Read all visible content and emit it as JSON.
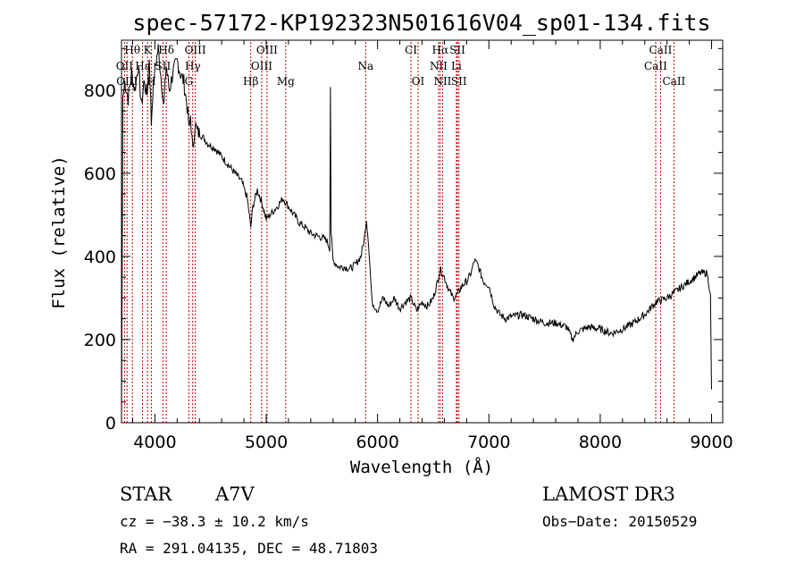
{
  "chart_data": {
    "type": "line",
    "title": "spec-57172-KP192323N501616V04_sp01-134.fits",
    "xlabel": "Wavelength (Å)",
    "ylabel": "Flux (relative)",
    "xlim": [
      3700,
      9100
    ],
    "ylim": [
      0,
      920
    ],
    "xticks": [
      4000,
      5000,
      6000,
      7000,
      8000,
      9000
    ],
    "yticks": [
      0,
      200,
      400,
      600,
      800
    ],
    "line_color": "#000000",
    "marker_color": "#cc0000",
    "spectrum_anchor_points": [
      [
        3700,
        0
      ],
      [
        3705,
        300
      ],
      [
        3712,
        780
      ],
      [
        3730,
        820
      ],
      [
        3760,
        780
      ],
      [
        3790,
        840
      ],
      [
        3820,
        800
      ],
      [
        3850,
        860
      ],
      [
        3880,
        760
      ],
      [
        3900,
        820
      ],
      [
        3930,
        790
      ],
      [
        3950,
        880
      ],
      [
        3968,
        720
      ],
      [
        3980,
        790
      ],
      [
        4000,
        850
      ],
      [
        4030,
        900
      ],
      [
        4060,
        820
      ],
      [
        4080,
        760
      ],
      [
        4101,
        860
      ],
      [
        4130,
        800
      ],
      [
        4160,
        840
      ],
      [
        4200,
        870
      ],
      [
        4230,
        840
      ],
      [
        4260,
        820
      ],
      [
        4290,
        760
      ],
      [
        4310,
        700
      ],
      [
        4320,
        740
      ],
      [
        4340,
        650
      ],
      [
        4360,
        720
      ],
      [
        4380,
        700
      ],
      [
        4420,
        690
      ],
      [
        4480,
        670
      ],
      [
        4540,
        660
      ],
      [
        4600,
        640
      ],
      [
        4660,
        620
      ],
      [
        4720,
        600
      ],
      [
        4780,
        580
      ],
      [
        4830,
        540
      ],
      [
        4861,
        470
      ],
      [
        4880,
        520
      ],
      [
        4920,
        560
      ],
      [
        4960,
        530
      ],
      [
        5000,
        490
      ],
      [
        5050,
        505
      ],
      [
        5100,
        520
      ],
      [
        5150,
        540
      ],
      [
        5200,
        520
      ],
      [
        5250,
        500
      ],
      [
        5300,
        480
      ],
      [
        5350,
        470
      ],
      [
        5400,
        455
      ],
      [
        5450,
        450
      ],
      [
        5500,
        445
      ],
      [
        5540,
        440
      ],
      [
        5570,
        420
      ],
      [
        5577,
        810
      ],
      [
        5582,
        460
      ],
      [
        5600,
        390
      ],
      [
        5650,
        375
      ],
      [
        5700,
        375
      ],
      [
        5750,
        370
      ],
      [
        5800,
        380
      ],
      [
        5850,
        400
      ],
      [
        5880,
        440
      ],
      [
        5900,
        490
      ],
      [
        5920,
        430
      ],
      [
        5950,
        290
      ],
      [
        6000,
        270
      ],
      [
        6050,
        300
      ],
      [
        6100,
        280
      ],
      [
        6150,
        300
      ],
      [
        6200,
        275
      ],
      [
        6250,
        290
      ],
      [
        6300,
        300
      ],
      [
        6350,
        270
      ],
      [
        6400,
        290
      ],
      [
        6450,
        280
      ],
      [
        6500,
        300
      ],
      [
        6540,
        340
      ],
      [
        6562,
        370
      ],
      [
        6580,
        360
      ],
      [
        6600,
        350
      ],
      [
        6640,
        320
      ],
      [
        6680,
        300
      ],
      [
        6720,
        310
      ],
      [
        6760,
        330
      ],
      [
        6800,
        340
      ],
      [
        6840,
        360
      ],
      [
        6870,
        390
      ],
      [
        6900,
        380
      ],
      [
        6950,
        340
      ],
      [
        7000,
        330
      ],
      [
        7050,
        280
      ],
      [
        7100,
        260
      ],
      [
        7150,
        250
      ],
      [
        7200,
        255
      ],
      [
        7300,
        260
      ],
      [
        7400,
        250
      ],
      [
        7500,
        240
      ],
      [
        7600,
        240
      ],
      [
        7700,
        230
      ],
      [
        7750,
        200
      ],
      [
        7800,
        220
      ],
      [
        7900,
        230
      ],
      [
        8000,
        225
      ],
      [
        8100,
        215
      ],
      [
        8200,
        225
      ],
      [
        8300,
        240
      ],
      [
        8400,
        260
      ],
      [
        8500,
        290
      ],
      [
        8600,
        300
      ],
      [
        8700,
        320
      ],
      [
        8800,
        340
      ],
      [
        8900,
        360
      ],
      [
        8960,
        360
      ],
      [
        8990,
        310
      ],
      [
        8997,
        130
      ],
      [
        9000,
        80
      ]
    ],
    "spectral_lines": [
      {
        "label": "Hθ",
        "wavelength": 3798,
        "row": 0
      },
      {
        "label": "K",
        "wavelength": 3934,
        "row": 0
      },
      {
        "label": "Hδ",
        "wavelength": 4102,
        "row": 0
      },
      {
        "label": "OIII",
        "wavelength": 4363,
        "row": 0
      },
      {
        "label": "OIII",
        "wavelength": 5007,
        "row": 0
      },
      {
        "label": "CI",
        "wavelength": 6300,
        "row": 0
      },
      {
        "label": "Hα",
        "wavelength": 6563,
        "row": 0
      },
      {
        "label": "SII",
        "wavelength": 6717,
        "row": 0
      },
      {
        "label": "CaII",
        "wavelength": 8542,
        "row": 0
      },
      {
        "label": "OII",
        "wavelength": 3727,
        "row": 1
      },
      {
        "label": "Hε",
        "wavelength": 3889,
        "row": 1
      },
      {
        "label": "SII",
        "wavelength": 4072,
        "row": 1
      },
      {
        "label": "Hγ",
        "wavelength": 4340,
        "row": 1
      },
      {
        "label": "OIII",
        "wavelength": 4959,
        "row": 1
      },
      {
        "label": "Na",
        "wavelength": 5893,
        "row": 1
      },
      {
        "label": "NII",
        "wavelength": 6548,
        "row": 1
      },
      {
        "label": "Li",
        "wavelength": 6708,
        "row": 1
      },
      {
        "label": "CaII",
        "wavelength": 8498,
        "row": 1
      },
      {
        "label": "OIII",
        "wavelength": 3750,
        "row": 2
      },
      {
        "label": "H",
        "wavelength": 3968,
        "row": 2
      },
      {
        "label": "G",
        "wavelength": 4305,
        "row": 2
      },
      {
        "label": "Hβ",
        "wavelength": 4861,
        "row": 2
      },
      {
        "label": "Mg",
        "wavelength": 5175,
        "row": 2
      },
      {
        "label": "OI",
        "wavelength": 6364,
        "row": 2
      },
      {
        "label": "NII",
        "wavelength": 6584,
        "row": 2
      },
      {
        "label": "SII",
        "wavelength": 6731,
        "row": 2
      },
      {
        "label": "CaII",
        "wavelength": 8662,
        "row": 2
      }
    ]
  },
  "info": {
    "object_class": "STAR",
    "subclass": "A7V",
    "survey": "LAMOST DR3",
    "cz": "cz = −38.3 ± 10.2 km/s",
    "obs_date": "Obs−Date: 20150529",
    "coords": "RA = 291.04135, DEC =  48.71803"
  }
}
